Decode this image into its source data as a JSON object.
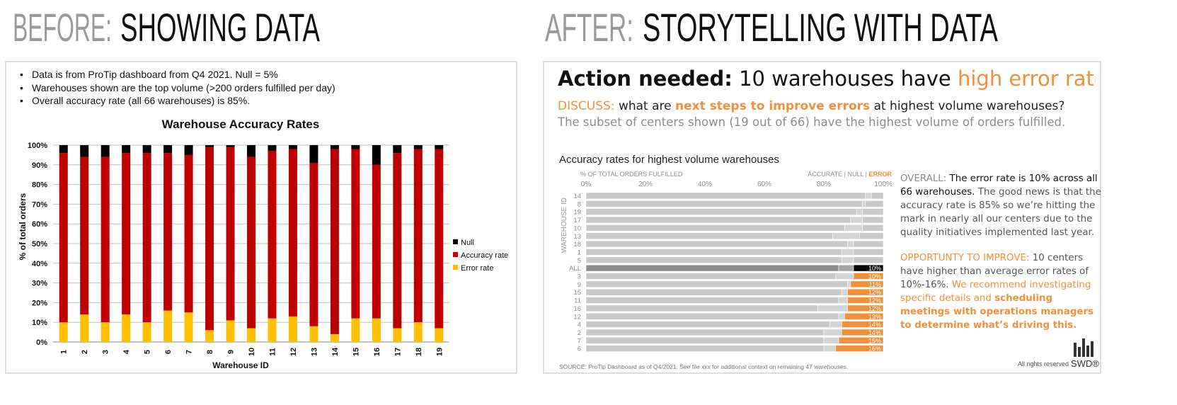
{
  "before": {
    "label": "BEFORE:",
    "heading": "SHOWING DATA",
    "notes": [
      "Data is from ProTip dashboard from Q4 2021. Null = 5%",
      "Warehouses shown are the top volume (>200 orders fulfilled per day)",
      "Overall accuracy rate (all 66 warehouses) is 85%."
    ]
  },
  "after": {
    "label": "AFTER:",
    "heading": "STORYTELLING WITH DATA",
    "headline": [
      "Action needed:",
      "10 warehouses have",
      "high error rates"
    ],
    "discuss": [
      "DISCUSS:",
      "what are",
      "next steps to improve errors",
      "at highest volume warehouses?"
    ],
    "subtext": "The subset of centers shown (19 out of 66) have the highest volume of orders fulfilled.",
    "overall": [
      "OVERALL:",
      "The error rate is 10% across all 66 warehouses.",
      "The good news is that the accuracy rate is 85% so we’re hitting the mark in nearly all our centers due to the quality initiatives implemented last year."
    ],
    "opportunity": [
      "OPPORTUNTY TO IMPROVE:",
      "10 centers have higher than average error rates of 10%-16%.",
      "We recommend investigating specific details and",
      "scheduling meetings with operations managers to determine what’s driving this."
    ],
    "source": "SOURCE: ProTip Dashboard as of Q4/2021. See file xxx for additional context on remaining 47 warehouses.",
    "rights": "All rights reserved",
    "logo": "SWD®"
  },
  "chart_data": [
    {
      "type": "stacked-bar",
      "title": "Warehouse Accuracy Rates",
      "x_label": "Warehouse ID",
      "y_label": "% of total orders",
      "categories": [
        "1",
        "2",
        "3",
        "4",
        "5",
        "6",
        "7",
        "8",
        "9",
        "10",
        "11",
        "12",
        "13",
        "14",
        "15",
        "16",
        "17",
        "18",
        "19"
      ],
      "series": [
        {
          "name": "Error rate",
          "color": "#ffc000",
          "values": [
            10,
            14,
            10,
            14,
            10,
            16,
            15,
            6,
            11,
            7,
            12,
            13,
            8,
            4,
            12,
            12,
            7,
            10,
            7
          ]
        },
        {
          "name": "Accuracy rate",
          "color": "#c00000",
          "values": [
            86,
            80,
            84,
            82,
            86,
            80,
            80,
            93,
            88,
            87,
            85,
            85,
            83,
            94,
            86,
            78,
            89,
            88,
            91
          ]
        },
        {
          "name": "Null",
          "color": "#000000",
          "values": [
            4,
            6,
            6,
            4,
            4,
            4,
            5,
            1,
            1,
            6,
            3,
            2,
            9,
            2,
            2,
            10,
            4,
            2,
            2
          ]
        }
      ],
      "ylim": [
        0,
        100
      ],
      "yticks": [
        {
          "value": 0,
          "label": "0%"
        },
        {
          "value": 10,
          "label": "10%"
        },
        {
          "value": 20,
          "label": "20%"
        },
        {
          "value": 30,
          "label": "30%"
        },
        {
          "value": 40,
          "label": "40%"
        },
        {
          "value": 50,
          "label": "50%"
        },
        {
          "value": 60,
          "label": "60%"
        },
        {
          "value": 70,
          "label": "70%"
        },
        {
          "value": 80,
          "label": "80%"
        },
        {
          "value": 90,
          "label": "90%"
        },
        {
          "value": 100,
          "label": "100%"
        }
      ],
      "grid": true,
      "legend": "right"
    },
    {
      "type": "stacked-barh",
      "title": "Accuracy rates for highest volume warehouses",
      "x_label": "% OF TOTAL ORDERS FULFILLED",
      "y_label": "WAREHOUSE ID",
      "categories": [
        "14",
        "8",
        "19",
        "17",
        "10",
        "13",
        "18",
        "1",
        "5",
        "ALL",
        "3",
        "9",
        "15",
        "11",
        "16",
        "12",
        "4",
        "2",
        "7",
        "6"
      ],
      "series": [
        {
          "name": "ACCURATE",
          "color": "#8c8c8c",
          "values": [
            94,
            93,
            91,
            89,
            87,
            83,
            88,
            86,
            86,
            85,
            84,
            88,
            86,
            85,
            78,
            85,
            82,
            80,
            80,
            80
          ],
          "colors": [
            "#c8c8c8",
            "#c8c8c8",
            "#c8c8c8",
            "#c8c8c8",
            "#c8c8c8",
            "#c8c8c8",
            "#c8c8c8",
            "#c8c8c8",
            "#c8c8c8",
            "#8c8c8c",
            "#c8c8c8",
            "#c8c8c8",
            "#c8c8c8",
            "#c8c8c8",
            "#c8c8c8",
            "#c8c8c8",
            "#c8c8c8",
            "#c8c8c8",
            "#c8c8c8",
            "#c8c8c8"
          ]
        },
        {
          "name": "NULL",
          "color": "#8c8c8c",
          "values": [
            2,
            1,
            2,
            4,
            6,
            9,
            2,
            4,
            4,
            5,
            6,
            1,
            2,
            3,
            10,
            2,
            4,
            6,
            5,
            4
          ],
          "colors": [
            "#d4d4d4",
            "#d4d4d4",
            "#d4d4d4",
            "#d4d4d4",
            "#d4d4d4",
            "#d4d4d4",
            "#d4d4d4",
            "#d4d4d4",
            "#d4d4d4",
            "#a6a6a6",
            "#d4d4d4",
            "#d4d4d4",
            "#d4d4d4",
            "#d4d4d4",
            "#d4d4d4",
            "#d4d4d4",
            "#d4d4d4",
            "#d4d4d4",
            "#d4d4d4",
            "#d4d4d4"
          ]
        },
        {
          "name": "ERROR",
          "color": "#f0903a",
          "values": [
            4,
            6,
            7,
            7,
            7,
            8,
            10,
            10,
            10,
            10,
            10,
            11,
            12,
            12,
            12,
            13,
            14,
            14,
            15,
            16
          ],
          "value_labels": [
            null,
            null,
            null,
            null,
            null,
            null,
            null,
            null,
            null,
            "10%",
            "10%",
            "11%",
            "12%",
            "12%",
            "12%",
            "13%",
            "14%",
            "14%",
            "15%",
            "16%"
          ],
          "colors": [
            "#c8c8c8",
            "#c8c8c8",
            "#c8c8c8",
            "#c8c8c8",
            "#c8c8c8",
            "#c8c8c8",
            "#c8c8c8",
            "#c8c8c8",
            "#c8c8c8",
            "#000000",
            "#f0903a",
            "#f0903a",
            "#f0903a",
            "#f0903a",
            "#f0903a",
            "#f0903a",
            "#f0903a",
            "#f0903a",
            "#f0903a",
            "#f0903a"
          ]
        }
      ],
      "xlim": [
        0,
        100
      ],
      "xticks": [
        {
          "value": 0,
          "label": "0%"
        },
        {
          "value": 20,
          "label": "20%"
        },
        {
          "value": 40,
          "label": "40%"
        },
        {
          "value": 60,
          "label": "60%"
        },
        {
          "value": 80,
          "label": "80%"
        },
        {
          "value": 100,
          "label": "100%"
        }
      ],
      "grid": false,
      "legend": "top-right"
    }
  ]
}
